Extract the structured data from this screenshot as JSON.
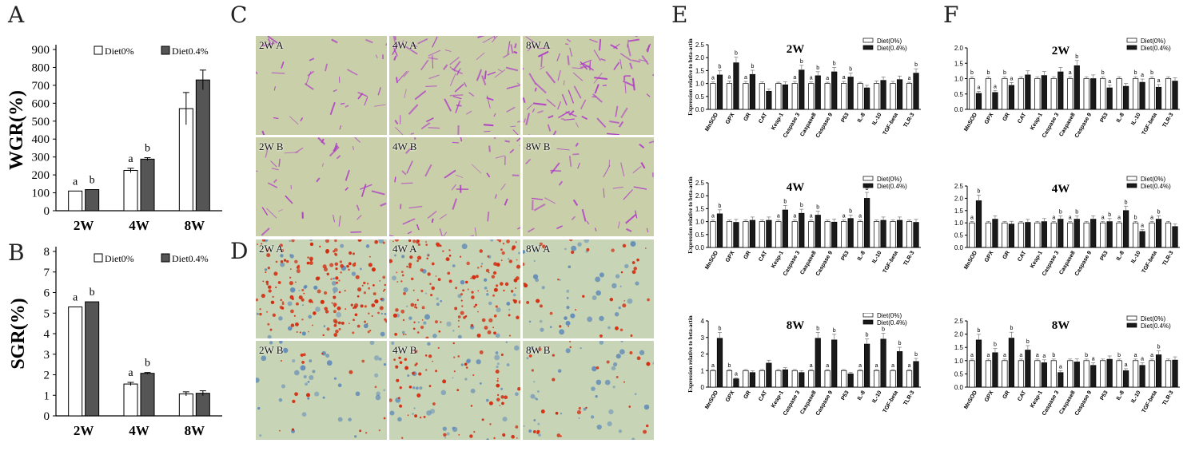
{
  "panels": {
    "A": "A",
    "B": "B",
    "C": "C",
    "D": "D",
    "E": "E",
    "F": "F"
  },
  "colors": {
    "bar_control": "#ffffff",
    "bar_treated_gray": "#555555",
    "bar_treated_black": "#1a1a1a",
    "he_bg": "#c9cfa8",
    "he_stain": "#b03cc8",
    "oil_bg": "#c7d4b6",
    "oil_red": "#d42a0e",
    "oil_blue": "#4a7ab8"
  },
  "chart_data": [
    {
      "id": "A",
      "type": "bar",
      "ylabel": "WGR(%)",
      "categories": [
        "2W",
        "4W",
        "8W"
      ],
      "ylim": [
        0,
        900
      ],
      "yticks": [
        0,
        100,
        200,
        300,
        400,
        500,
        600,
        700,
        800,
        900
      ],
      "series": [
        {
          "name": "Diet0%",
          "values": [
            110,
            225,
            570
          ],
          "errors": [
            0,
            12,
            90
          ]
        },
        {
          "name": "Diet0.4%",
          "values": [
            118,
            288,
            730
          ],
          "errors": [
            0,
            8,
            55
          ]
        }
      ],
      "letters": [
        [
          "a",
          "b"
        ],
        [
          "a",
          "b"
        ],
        [
          "",
          ""
        ]
      ],
      "legend": "top"
    },
    {
      "id": "B",
      "type": "bar",
      "ylabel": "SGR(%)",
      "categories": [
        "2W",
        "4W",
        "8W"
      ],
      "ylim": [
        0,
        8
      ],
      "yticks": [
        0,
        1,
        2,
        3,
        4,
        5,
        6,
        7,
        8
      ],
      "series": [
        {
          "name": "Diet0%",
          "values": [
            5.3,
            1.55,
            1.07
          ],
          "errors": [
            0,
            0.08,
            0.1
          ]
        },
        {
          "name": "Diet0.4%",
          "values": [
            5.55,
            2.07,
            1.1
          ],
          "errors": [
            0,
            0.04,
            0.12
          ]
        }
      ],
      "letters": [
        [
          "a",
          "b"
        ],
        [
          "a",
          "b"
        ],
        [
          "",
          ""
        ]
      ],
      "legend": "top"
    },
    {
      "id": "E-2W",
      "type": "bar",
      "title": "2W",
      "ylabel": "Expression relative to beta-actin",
      "categories": [
        "MnSOD",
        "GPX",
        "GR",
        "CAT",
        "Keap-1",
        "Caspase 3",
        "Caspase8",
        "Caspase 9",
        "P53",
        "IL-8",
        "IL-10",
        "TGF-beta",
        "TLR-3"
      ],
      "ylim": [
        0,
        2.5
      ],
      "yticks": [
        "0.0",
        "0.5",
        "1.0",
        "1.5",
        "2.0",
        "2.5"
      ],
      "series": [
        {
          "name": "Diet(0%)",
          "values": [
            1.0,
            1.0,
            1.0,
            1.0,
            1.0,
            1.0,
            1.0,
            1.0,
            1.0,
            1.0,
            1.0,
            1.0,
            1.0
          ],
          "errors": [
            0.06,
            0.1,
            0.08,
            0.06,
            0.05,
            0.08,
            0.06,
            0.05,
            0.08,
            0.05,
            0.1,
            0.08,
            0.05
          ]
        },
        {
          "name": "Diet(0.4%)",
          "values": [
            1.33,
            1.8,
            1.35,
            0.7,
            0.95,
            1.52,
            1.3,
            1.45,
            1.25,
            0.83,
            1.12,
            1.15,
            1.4
          ]
        }
      ],
      "letters": [
        [
          "a",
          "b"
        ],
        [
          "a",
          "b"
        ],
        [
          "a",
          "b"
        ],
        [
          "",
          ""
        ],
        [
          "",
          ""
        ],
        [
          "a",
          "b"
        ],
        [
          "a",
          "b"
        ],
        [
          "a",
          "b"
        ],
        [
          "a",
          "b"
        ],
        [
          "",
          ""
        ],
        [
          "",
          ""
        ],
        [
          "",
          ""
        ],
        [
          "a",
          "b"
        ]
      ],
      "legend": "top-right"
    },
    {
      "id": "E-4W",
      "type": "bar",
      "title": "4W",
      "ylabel": "Expression relative to beta-actin",
      "categories": [
        "MnSOD",
        "GPX",
        "GR",
        "CAT",
        "Keap-1",
        "Caspase 3",
        "Caspase8",
        "Caspase 9",
        "P53",
        "IL-8",
        "IL-10",
        "TGF-beta",
        "TLR-3"
      ],
      "ylim": [
        0,
        2.5
      ],
      "yticks": [
        "0.0",
        "0.5",
        "1.0",
        "1.5",
        "2.0",
        "2.5"
      ],
      "series": [
        {
          "name": "Diet(0%)",
          "values": [
            1.0,
            1.0,
            1.0,
            1.0,
            1.0,
            1.0,
            1.0,
            1.0,
            1.0,
            1.0,
            1.0,
            1.0,
            1.0
          ]
        },
        {
          "name": "Diet(0.4%)",
          "values": [
            1.3,
            0.97,
            1.05,
            1.05,
            1.45,
            1.32,
            1.25,
            0.98,
            1.12,
            1.9,
            1.05,
            1.05,
            0.97
          ]
        }
      ],
      "letters": [
        [
          "a",
          "b"
        ],
        [
          "",
          ""
        ],
        [
          "",
          ""
        ],
        [
          "",
          ""
        ],
        [
          "a",
          "b"
        ],
        [
          "a",
          "b"
        ],
        [
          "a",
          "b"
        ],
        [
          "",
          ""
        ],
        [
          "a",
          "b"
        ],
        [
          "a",
          "b"
        ],
        [
          "",
          ""
        ],
        [
          "",
          ""
        ],
        [
          "",
          ""
        ]
      ],
      "legend": "top-right"
    },
    {
      "id": "E-8W",
      "type": "bar",
      "title": "8W",
      "ylabel": "Expression relative to beta-actin",
      "categories": [
        "MnSOD",
        "GPX",
        "GR",
        "CAT",
        "Keap-1",
        "Caspase 3",
        "Caspase8",
        "Caspase 9",
        "P53",
        "IL-8",
        "IL-10",
        "TGF-beta",
        "TLR-3"
      ],
      "ylim": [
        0,
        4
      ],
      "yticks": [
        "0",
        "1",
        "2",
        "3",
        "4"
      ],
      "series": [
        {
          "name": "Diet(0%)",
          "values": [
            1.0,
            1.0,
            1.0,
            1.0,
            1.0,
            1.0,
            1.0,
            1.0,
            1.0,
            1.0,
            1.0,
            1.0,
            1.0
          ]
        },
        {
          "name": "Diet(0.4%)",
          "values": [
            2.95,
            0.5,
            0.88,
            1.45,
            1.05,
            0.88,
            2.95,
            2.85,
            0.8,
            2.6,
            2.9,
            2.15,
            1.55
          ]
        }
      ],
      "letters": [
        [
          "a",
          "b"
        ],
        [
          "b",
          "a"
        ],
        [
          "",
          ""
        ],
        [
          "",
          ""
        ],
        [
          "",
          ""
        ],
        [
          "",
          ""
        ],
        [
          "a",
          "b"
        ],
        [
          "a",
          "b"
        ],
        [
          "",
          ""
        ],
        [
          "a",
          "b"
        ],
        [
          "a",
          "b"
        ],
        [
          "a",
          "b"
        ],
        [
          "a",
          "b"
        ]
      ],
      "legend": "top-right"
    },
    {
      "id": "F-2W",
      "type": "bar",
      "title": "2W",
      "ylabel": "",
      "categories": [
        "MnSOD",
        "GPX",
        "GR",
        "CAT",
        "Keap-1",
        "Caspase 3",
        "Caspase8",
        "Caspase 9",
        "P53",
        "IL-8",
        "IL-10",
        "TGF-beta",
        "TLR-3"
      ],
      "ylim": [
        0,
        2.0
      ],
      "yticks": [
        "0.0",
        "0.5",
        "1.0",
        "1.5",
        "2.0"
      ],
      "series": [
        {
          "name": "Diet(0%)",
          "values": [
            1.0,
            1.0,
            1.0,
            1.0,
            1.0,
            1.0,
            1.0,
            1.0,
            1.0,
            1.0,
            1.0,
            1.0,
            1.0
          ]
        },
        {
          "name": "Diet(0.4%)",
          "values": [
            0.52,
            0.55,
            0.78,
            1.12,
            1.1,
            1.22,
            1.42,
            1.0,
            0.7,
            0.75,
            0.88,
            0.72,
            0.92
          ]
        }
      ],
      "letters": [
        [
          "b",
          "a"
        ],
        [
          "b",
          "a"
        ],
        [
          "b",
          "a"
        ],
        [
          "",
          ""
        ],
        [
          "",
          ""
        ],
        [
          "",
          ""
        ],
        [
          "a",
          "b"
        ],
        [
          "",
          ""
        ],
        [
          "b",
          "a"
        ],
        [
          "",
          ""
        ],
        [
          "b",
          "a"
        ],
        [
          "b",
          "a"
        ],
        [
          "",
          ""
        ]
      ],
      "legend": "top-right"
    },
    {
      "id": "F-4W",
      "type": "bar",
      "title": "4W",
      "ylabel": "",
      "categories": [
        "MnSOD",
        "GPX",
        "GR",
        "CAT",
        "Keap-1",
        "Caspase 3",
        "Caspase8",
        "Caspase 9",
        "P53",
        "IL-8",
        "IL-10",
        "TGF-beta",
        "TLR-3"
      ],
      "ylim": [
        0,
        2.5
      ],
      "yticks": [
        "0.0",
        "0.5",
        "1.0",
        "1.5",
        "2.0",
        "2.5"
      ],
      "series": [
        {
          "name": "Diet(0%)",
          "values": [
            1.0,
            1.0,
            1.0,
            1.0,
            1.0,
            1.0,
            1.0,
            1.0,
            1.0,
            1.0,
            1.0,
            1.0,
            1.0
          ]
        },
        {
          "name": "Diet(0.4%)",
          "values": [
            1.9,
            1.15,
            0.95,
            1.02,
            1.05,
            1.15,
            1.15,
            1.15,
            1.05,
            1.5,
            0.65,
            1.15,
            0.85
          ]
        }
      ],
      "letters": [
        [
          "a",
          "b"
        ],
        [
          "",
          ""
        ],
        [
          "",
          ""
        ],
        [
          "",
          ""
        ],
        [
          "",
          ""
        ],
        [
          "a",
          "b"
        ],
        [
          "a",
          "b"
        ],
        [
          "",
          ""
        ],
        [
          "a",
          "b"
        ],
        [
          "a",
          "b"
        ],
        [
          "b",
          "a"
        ],
        [
          "a",
          "b"
        ],
        [
          "",
          ""
        ]
      ],
      "legend": "top-right"
    },
    {
      "id": "F-8W",
      "type": "bar",
      "title": "8W",
      "ylabel": "",
      "categories": [
        "MnSOD",
        "GPX",
        "GR",
        "CAT",
        "Keap-1",
        "Caspase 3",
        "Caspase8",
        "Caspase 9",
        "P53",
        "IL-8",
        "IL-10",
        "TGF-beta",
        "TLR-3"
      ],
      "ylim": [
        0,
        2.5
      ],
      "yticks": [
        "0.0",
        "0.5",
        "1.0",
        "1.5",
        "2.0",
        "2.5"
      ],
      "series": [
        {
          "name": "Diet(0%)",
          "values": [
            1.0,
            1.0,
            1.0,
            1.0,
            1.0,
            1.0,
            1.0,
            1.0,
            1.0,
            1.0,
            1.0,
            1.0,
            1.0
          ]
        },
        {
          "name": "Diet(0.4%)",
          "values": [
            1.78,
            1.3,
            1.85,
            1.4,
            0.92,
            0.55,
            0.95,
            0.82,
            1.05,
            0.62,
            0.82,
            1.22,
            1.02
          ]
        }
      ],
      "letters": [
        [
          "a",
          "b"
        ],
        [
          "a",
          "b"
        ],
        [
          "a",
          "b"
        ],
        [
          "a",
          "b"
        ],
        [
          "a",
          "a"
        ],
        [
          "b",
          "a"
        ],
        [
          "",
          ""
        ],
        [
          "b",
          "a"
        ],
        [
          "",
          ""
        ],
        [
          "b",
          "a"
        ],
        [
          "a",
          "a"
        ],
        [
          "a",
          "b"
        ],
        [
          "",
          ""
        ]
      ],
      "legend": "top-right"
    }
  ],
  "micrographs": {
    "C": [
      {
        "label": "2W A"
      },
      {
        "label": "4W A"
      },
      {
        "label": "8W A"
      },
      {
        "label": "2W B"
      },
      {
        "label": "4W B"
      },
      {
        "label": "8W B"
      }
    ],
    "D": [
      {
        "label": "2W A"
      },
      {
        "label": "4W A"
      },
      {
        "label": "8W A"
      },
      {
        "label": "2W B"
      },
      {
        "label": "4W B"
      },
      {
        "label": "8W B"
      }
    ]
  }
}
